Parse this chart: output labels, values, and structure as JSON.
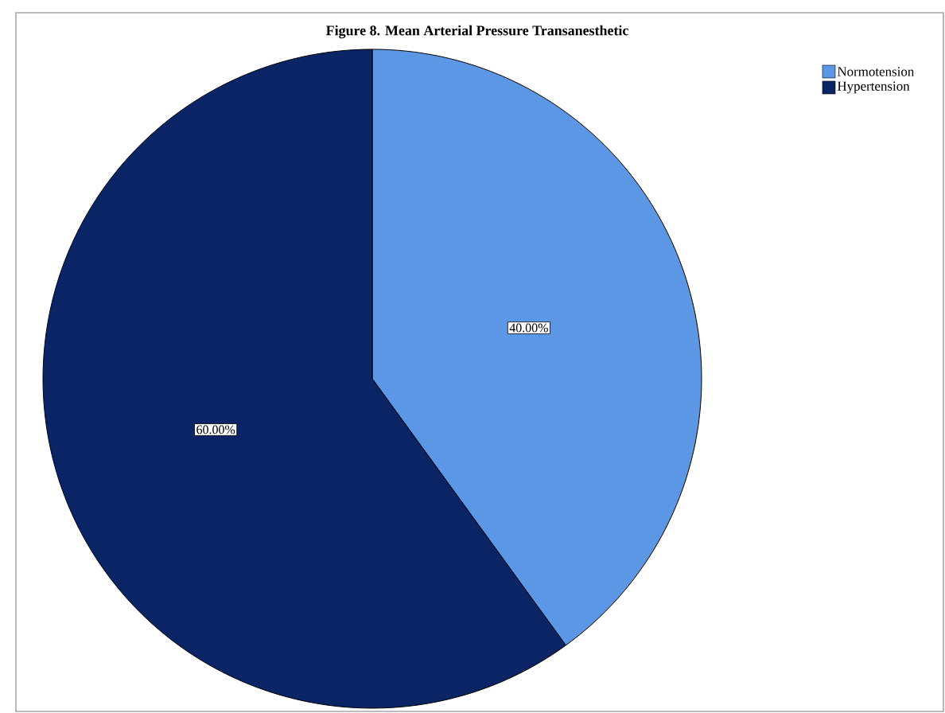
{
  "chart_data": {
    "type": "pie",
    "title": "Figure 8. Mean Arterial Pressure Transanesthetic",
    "categories": [
      "Normotension",
      "Hypertension"
    ],
    "values": [
      40,
      60
    ],
    "value_labels": [
      "40.00%",
      "60.00%"
    ],
    "colors": [
      "#5b97e5",
      "#0b2466"
    ],
    "legend": "top right"
  }
}
